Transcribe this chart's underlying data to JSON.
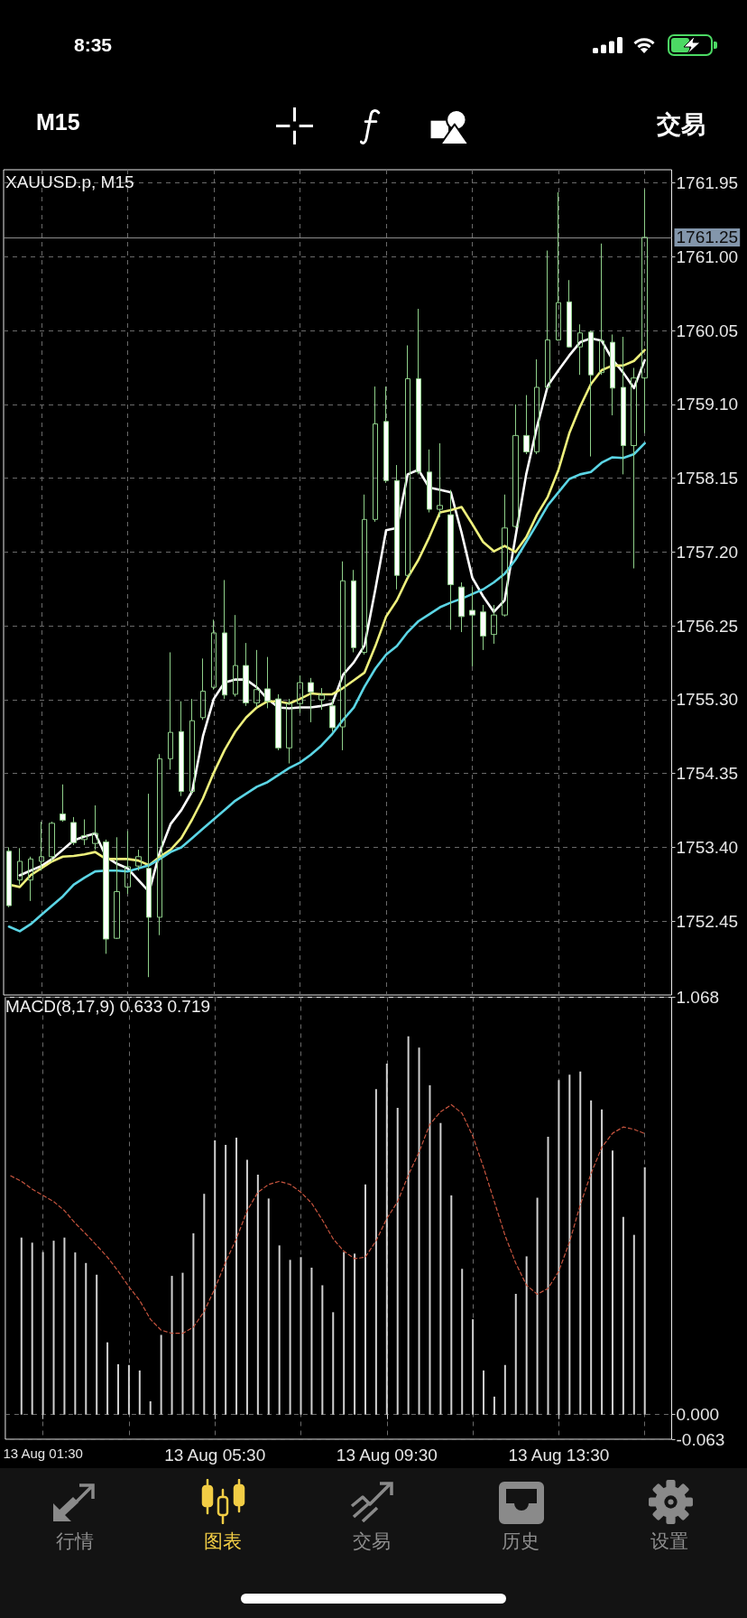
{
  "chart_data": [
    {
      "type": "candlestick",
      "title": "XAUUSD.p, M15",
      "annotations": [
        "8:35",
        "M15",
        "交易",
        "行情",
        "图表",
        "交易",
        "历史",
        "设置"
      ],
      "categories": [
        null,
        null,
        null,
        null,
        null,
        null,
        null,
        null,
        null,
        null,
        null,
        null,
        null,
        null,
        null,
        null,
        null,
        null,
        null,
        null,
        null,
        null,
        null,
        null,
        null,
        null,
        null,
        null,
        null,
        null,
        null,
        null,
        null,
        null,
        null,
        null,
        null,
        null,
        null,
        null,
        null,
        null,
        null,
        null,
        null,
        null,
        null,
        null,
        null,
        null,
        null,
        null,
        null,
        null,
        null,
        null,
        null,
        null,
        null,
        null
      ],
      "ohlc": [
        [
          1753.35,
          1753.4,
          1752.63,
          1752.65
        ],
        [
          1752.98,
          1753.39,
          1752.92,
          1753.22
        ],
        [
          1752.98,
          1753.28,
          1752.71,
          1753.25
        ],
        [
          1753.22,
          1753.73,
          1753.1,
          1753.28
        ],
        [
          1753.28,
          1753.73,
          1753.22,
          1753.71
        ],
        [
          1753.83,
          1754.21,
          1753.73,
          1753.75
        ],
        [
          1753.72,
          1753.79,
          1753.43,
          1753.46
        ],
        [
          1753.5,
          1753.76,
          1753.43,
          1753.55
        ],
        [
          1753.45,
          1753.94,
          1753.37,
          1753.58
        ],
        [
          1753.47,
          1753.5,
          1752.03,
          1752.22
        ],
        [
          1752.23,
          1753.53,
          1752.22,
          1752.83
        ],
        [
          1752.89,
          1753.61,
          1752.8,
          1753.15
        ],
        [
          1753.16,
          1753.37,
          1753.1,
          1753.28
        ],
        [
          1753.13,
          1754.09,
          1751.73,
          1752.5
        ],
        [
          1752.5,
          1754.6,
          1752.27,
          1754.54
        ],
        [
          1754.54,
          1755.91,
          1754.4,
          1754.88
        ],
        [
          1754.89,
          1755.28,
          1754.06,
          1754.12
        ],
        [
          1754.12,
          1755.31,
          1754.09,
          1755.03
        ],
        [
          1755.07,
          1755.83,
          1755.04,
          1755.41
        ],
        [
          1755.46,
          1756.33,
          1755.43,
          1756.16
        ],
        [
          1756.16,
          1756.84,
          1755.31,
          1755.36
        ],
        [
          1755.37,
          1756.39,
          1755.34,
          1755.74
        ],
        [
          1755.74,
          1756.03,
          1755.22,
          1755.26
        ],
        [
          1755.26,
          1755.94,
          1755.2,
          1755.43
        ],
        [
          1755.44,
          1755.85,
          1755.19,
          1755.28
        ],
        [
          1755.31,
          1755.37,
          1754.65,
          1754.68
        ],
        [
          1754.68,
          1755.31,
          1754.48,
          1755.25
        ],
        [
          1755.25,
          1755.61,
          1755.13,
          1755.52
        ],
        [
          1755.52,
          1755.58,
          1755.01,
          1755.4
        ],
        [
          1755.3,
          1755.45,
          1755.17,
          1755.36
        ],
        [
          1755.22,
          1755.31,
          1754.89,
          1754.94
        ],
        [
          1754.95,
          1757.08,
          1754.65,
          1756.83
        ],
        [
          1756.83,
          1756.97,
          1755.91,
          1755.97
        ],
        [
          1755.91,
          1757.94,
          1755.88,
          1757.62
        ],
        [
          1757.62,
          1759.33,
          1757.59,
          1758.85
        ],
        [
          1758.88,
          1759.33,
          1758.09,
          1758.12
        ],
        [
          1758.12,
          1758.32,
          1756.72,
          1756.9
        ],
        [
          1756.9,
          1759.86,
          1756.87,
          1759.43
        ],
        [
          1759.43,
          1760.33,
          1758.2,
          1758.23
        ],
        [
          1758.23,
          1758.52,
          1757.71,
          1757.75
        ],
        [
          1757.75,
          1758.6,
          1757.65,
          1757.8
        ],
        [
          1757.68,
          1758,
          1756.2,
          1756.78
        ],
        [
          1756.75,
          1756.81,
          1756.17,
          1756.37
        ],
        [
          1756.45,
          1756.75,
          1755.73,
          1756.39
        ],
        [
          1756.43,
          1756.52,
          1755.94,
          1756.12
        ],
        [
          1756.14,
          1756.52,
          1756.02,
          1756.39
        ],
        [
          1756.39,
          1757.94,
          1756.37,
          1757.51
        ],
        [
          1757.53,
          1759.1,
          1757.51,
          1758.7
        ],
        [
          1758.7,
          1759.22,
          1758.46,
          1758.49
        ],
        [
          1758.49,
          1759.68,
          1758.46,
          1759.32
        ],
        [
          1759.32,
          1761.08,
          1759.31,
          1759.93
        ],
        [
          1759.93,
          1761.83,
          1759.92,
          1760.41
        ],
        [
          1760.42,
          1760.7,
          1759.83,
          1759.84
        ],
        [
          1759.84,
          1760.13,
          1759.48,
          1760.02
        ],
        [
          1760.03,
          1760.05,
          1758.43,
          1759.48
        ],
        [
          1759.51,
          1761.17,
          1759.48,
          1759.92
        ],
        [
          1759.9,
          1760,
          1758.96,
          1759.31
        ],
        [
          1759.32,
          1759.97,
          1758.2,
          1758.57
        ],
        [
          1758.57,
          1759.57,
          1756.99,
          1759.44
        ],
        [
          1759.44,
          1761.87,
          1758.73,
          1761.25
        ]
      ],
      "color": "#8fd08a",
      "colors": [
        "#ffffff",
        "#8fd08a",
        "#8fd08a",
        "#8fd08a",
        "#8fd08a",
        "#ffffff",
        "#ffffff",
        "#8fd08a",
        "#8fd08a",
        "#ffffff",
        "#8fd08a",
        "#8fd08a",
        "#8fd08a",
        "#ffffff",
        "#8fd08a",
        "#8fd08a",
        "#ffffff",
        "#8fd08a",
        "#8fd08a",
        "#8fd08a",
        "#ffffff",
        "#8fd08a",
        "#ffffff",
        "#8fd08a",
        "#ffffff",
        "#ffffff",
        "#8fd08a",
        "#8fd08a",
        "#ffffff",
        "#8fd08a",
        "#ffffff",
        "#8fd08a",
        "#ffffff",
        "#8fd08a",
        "#8fd08a",
        "#ffffff",
        "#ffffff",
        "#8fd08a",
        "#ffffff",
        "#ffffff",
        "#8fd08a",
        "#ffffff",
        "#ffffff",
        "#ffffff",
        "#ffffff",
        "#8fd08a",
        "#8fd08a",
        "#8fd08a",
        "#ffffff",
        "#8fd08a",
        "#8fd08a",
        "#8fd08a",
        "#ffffff",
        "#8fd08a",
        "#ffffff",
        "#8fd08a",
        "#ffffff",
        "#ffffff",
        "#8fd08a",
        "#8fd08a"
      ],
      "series": [
        {
          "type": "line",
          "color": "#ffffff",
          "values": [
            null,
            1753.04,
            1753.1,
            1753.16,
            1753.25,
            1753.37,
            1753.49,
            1753.54,
            1753.58,
            1753.28,
            1753.19,
            1753.13,
            1752.98,
            1752.83,
            1753.34,
            1753.7,
            1753.88,
            1754.12,
            1754.83,
            1755.31,
            1755.52,
            1755.56,
            1755.56,
            1755.46,
            1755.31,
            1755.2,
            1755.19,
            1755.2,
            1755.2,
            1755.22,
            1755.25,
            1755.62,
            1755.78,
            1756,
            1756.72,
            1757.48,
            1757.51,
            1758.2,
            1758.26,
            1758.03,
            1758,
            1757.97,
            1757.45,
            1756.87,
            1756.63,
            1756.43,
            1756.58,
            1757.39,
            1758.2,
            1758.81,
            1759.34,
            1759.54,
            1759.73,
            1759.9,
            1759.95,
            1759.92,
            1759.68,
            1759.51,
            1759.31,
            1759.67
          ]
        },
        {
          "type": "line",
          "color": "#eef07c",
          "values": [
            1752.92,
            1752.89,
            1753.04,
            1753.13,
            1753.22,
            1753.28,
            1753.29,
            1753.31,
            1753.34,
            1753.25,
            1753.25,
            1753.25,
            1753.23,
            1753.17,
            1753.28,
            1753.37,
            1753.52,
            1753.76,
            1754.03,
            1754.36,
            1754.65,
            1754.89,
            1755.07,
            1755.2,
            1755.28,
            1755.28,
            1755.25,
            1755.31,
            1755.38,
            1755.37,
            1755.37,
            1755.45,
            1755.55,
            1755.65,
            1755.99,
            1756.37,
            1756.58,
            1756.87,
            1757.1,
            1757.39,
            1757.71,
            1757.74,
            1757.78,
            1757.56,
            1757.33,
            1757.21,
            1757.28,
            1757.2,
            1757.39,
            1757.68,
            1757.91,
            1758.26,
            1758.73,
            1759.07,
            1759.36,
            1759.54,
            1759.6,
            1759.6,
            1759.66,
            1759.8
          ]
        },
        {
          "type": "line",
          "color": "#5bd5e5",
          "values": [
            1752.38,
            1752.32,
            1752.41,
            1752.53,
            1752.65,
            1752.77,
            1752.92,
            1753.01,
            1753.09,
            1753.1,
            1753.1,
            1753.09,
            1753.13,
            1753.17,
            1753.25,
            1753.34,
            1753.4,
            1753.52,
            1753.64,
            1753.76,
            1753.88,
            1754,
            1754.09,
            1754.18,
            1754.24,
            1754.33,
            1754.42,
            1754.49,
            1754.59,
            1754.71,
            1754.86,
            1755.04,
            1755.2,
            1755.47,
            1755.7,
            1755.88,
            1755.99,
            1756.17,
            1756.31,
            1756.4,
            1756.49,
            1756.55,
            1756.6,
            1756.66,
            1756.72,
            1756.81,
            1756.92,
            1757.1,
            1757.33,
            1757.56,
            1757.8,
            1757.97,
            1758.14,
            1758.2,
            1758.23,
            1758.35,
            1758.42,
            1758.41,
            1758.46,
            1758.6
          ]
        }
      ],
      "ylim": [
        1751.5,
        1762.12
      ],
      "yticks": [
        1752.45,
        {
          "value": 1753.4,
          "label": "1753.40"
        },
        1754.35,
        {
          "value": 1755.3,
          "label": "1755.30"
        },
        1756.25,
        {
          "value": 1757.2,
          "label": "1757.20"
        },
        1758.15,
        {
          "value": 1759.1,
          "label": "1759.10"
        },
        1760.05,
        {
          "value": 1761,
          "label": "1761.00"
        },
        1761.95
      ],
      "ref_lines": [
        {
          "axis": "y",
          "value": 1761.25,
          "label": "1761.25",
          "color": "#8c8c8c"
        }
      ],
      "grid": true,
      "tick_labels": "y",
      "marker": "none"
    },
    {
      "type": "bar",
      "title": "MACD(8,17,9) 0.633 0.719",
      "categories": [
        null,
        null,
        null,
        "13 Aug 01:30",
        null,
        null,
        null,
        null,
        null,
        null,
        null,
        null,
        null,
        null,
        null,
        null,
        null,
        null,
        null,
        "13 Aug 05:30",
        null,
        null,
        null,
        null,
        null,
        null,
        null,
        null,
        null,
        null,
        null,
        null,
        null,
        null,
        null,
        "13 Aug 09:30",
        null,
        null,
        null,
        null,
        null,
        null,
        null,
        null,
        null,
        null,
        null,
        null,
        null,
        null,
        null,
        "13 Aug 13:30",
        null,
        null,
        null,
        null,
        null,
        null,
        null,
        null
      ],
      "series": [
        {
          "type": "bar",
          "color": "#d0d0d0",
          "values": [
            null,
            0.453,
            0.44,
            0.416,
            0.445,
            0.453,
            0.415,
            0.388,
            0.358,
            0.185,
            0.129,
            0.127,
            0.113,
            0.034,
            0.204,
            0.355,
            0.363,
            0.464,
            0.565,
            0.702,
            0.69,
            0.709,
            0.652,
            0.614,
            0.553,
            0.433,
            0.396,
            0.403,
            0.376,
            0.331,
            0.262,
            0.416,
            0.412,
            0.589,
            0.833,
            0.898,
            0.785,
            0.968,
            0.939,
            0.843,
            0.746,
            0.561,
            0.373,
            0.244,
            0.113,
            0.046,
            0.127,
            0.309,
            0.405,
            0.555,
            0.711,
            0.856,
            0.87,
            0.878,
            0.804,
            0.781,
            0.676,
            0.506,
            0.46,
            0.633
          ]
        },
        {
          "type": "line",
          "color": "#c8553f",
          "line_style": "dashed",
          "values": [
            0.611,
            0.597,
            0.577,
            0.561,
            0.545,
            0.522,
            0.49,
            0.462,
            0.433,
            0.403,
            0.367,
            0.327,
            0.292,
            0.244,
            0.216,
            0.208,
            0.208,
            0.224,
            0.264,
            0.323,
            0.391,
            0.45,
            0.522,
            0.569,
            0.589,
            0.597,
            0.589,
            0.569,
            0.541,
            0.498,
            0.45,
            0.418,
            0.399,
            0.403,
            0.445,
            0.502,
            0.545,
            0.613,
            0.672,
            0.743,
            0.775,
            0.793,
            0.771,
            0.712,
            0.632,
            0.545,
            0.458,
            0.387,
            0.331,
            0.308,
            0.323,
            0.367,
            0.442,
            0.537,
            0.617,
            0.684,
            0.72,
            0.736,
            0.73,
            0.719
          ]
        }
      ],
      "ylim": [
        -0.063,
        1.068
      ],
      "yticks": [
        -0.063,
        {
          "value": 0,
          "label": "0.000"
        },
        1.068
      ],
      "grid": true,
      "marker": "none"
    }
  ]
}
